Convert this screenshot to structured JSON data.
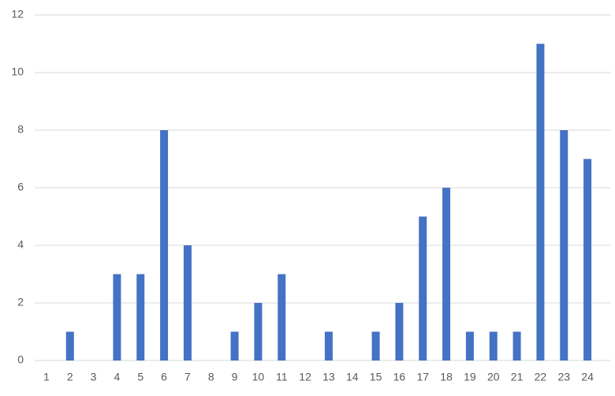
{
  "chart_data": {
    "type": "bar",
    "categories": [
      "1",
      "2",
      "3",
      "4",
      "5",
      "6",
      "7",
      "8",
      "9",
      "10",
      "11",
      "12",
      "13",
      "14",
      "15",
      "16",
      "17",
      "18",
      "19",
      "20",
      "21",
      "22",
      "23",
      "24"
    ],
    "values": [
      0,
      1,
      0,
      3,
      3,
      8,
      4,
      0,
      1,
      2,
      3,
      0,
      1,
      0,
      1,
      2,
      5,
      6,
      1,
      1,
      1,
      11,
      8,
      7
    ],
    "color": "#4472c4",
    "ylim": [
      0,
      12
    ],
    "yticks": [
      0,
      2,
      4,
      6,
      8,
      10,
      12
    ],
    "grid": true
  }
}
